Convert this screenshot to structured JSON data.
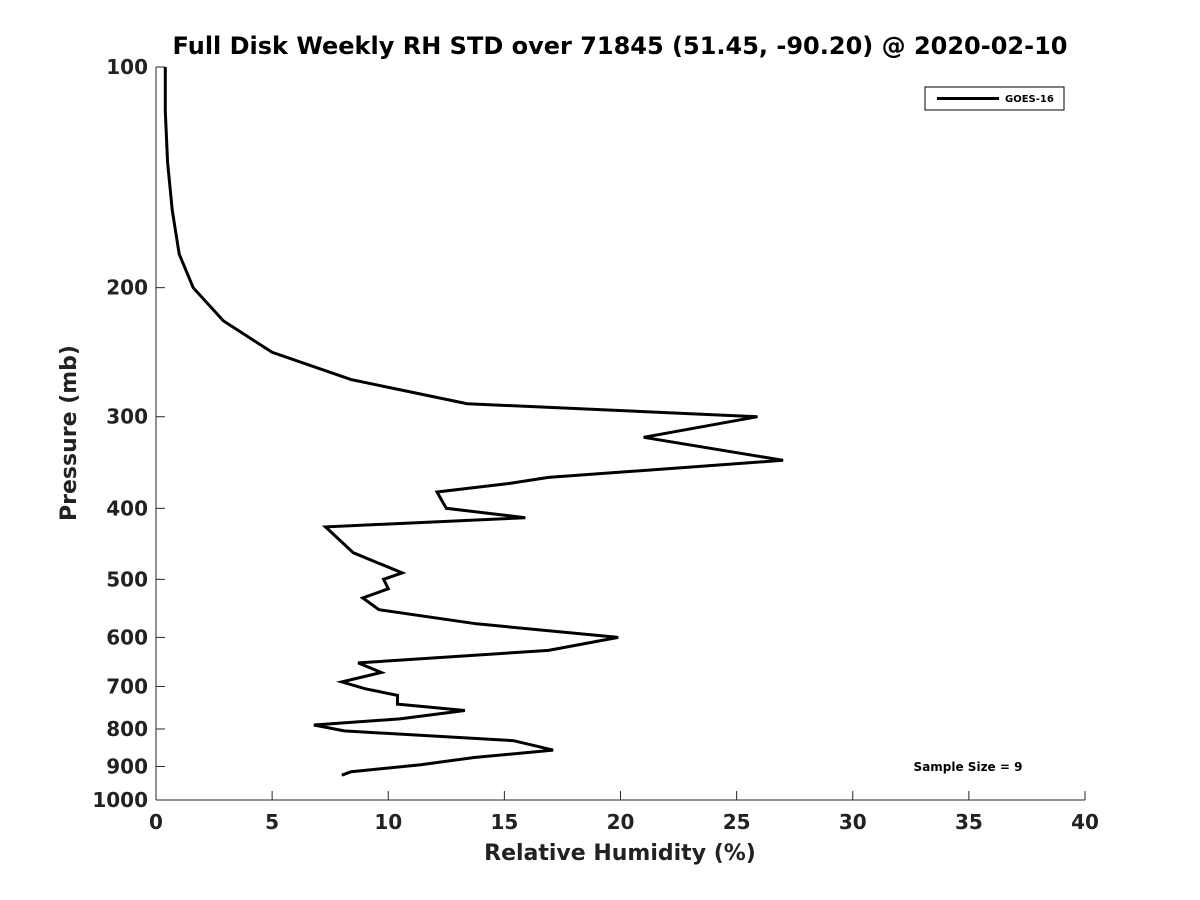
{
  "chart_data": {
    "type": "line",
    "title": "Full Disk Weekly RH STD over 71845 (51.45, -90.20) @ 2020-02-10",
    "xlabel": "Relative Humidity (%)",
    "ylabel": "Pressure (mb)",
    "xlim": [
      0,
      40
    ],
    "ylim": [
      100,
      1000
    ],
    "y_scale": "log",
    "y_reversed": true,
    "x_ticks": [
      0,
      5,
      10,
      15,
      20,
      25,
      30,
      35,
      40
    ],
    "y_ticks": [
      100,
      200,
      300,
      400,
      500,
      600,
      700,
      800,
      900,
      1000
    ],
    "grid": false,
    "legend_position": "top-right",
    "annotation": "Sample Size = 9",
    "series": [
      {
        "name": "GOES-16",
        "color": "#000000",
        "x": [
          0.4,
          0.4,
          0.5,
          0.7,
          1.0,
          1.6,
          2.9,
          5.0,
          8.4,
          13.4,
          25.9,
          21.0,
          27.0,
          16.9,
          15.2,
          12.1,
          12.5,
          15.9,
          7.3,
          8.5,
          10.6,
          9.8,
          10.0,
          8.9,
          9.6,
          13.8,
          19.9,
          16.9,
          8.7,
          9.7,
          8.0,
          9.0,
          10.4,
          10.4,
          13.3,
          10.5,
          6.8,
          8.1,
          15.4,
          17.1,
          13.7,
          11.4,
          8.4,
          8.0
        ],
        "y": [
          100,
          115,
          135,
          157,
          180,
          200,
          222,
          245,
          267,
          288,
          300,
          320,
          344,
          363,
          370,
          380,
          400,
          412,
          424,
          460,
          490,
          500,
          515,
          530,
          550,
          575,
          600,
          625,
          650,
          670,
          690,
          705,
          720,
          740,
          755,
          775,
          790,
          805,
          830,
          855,
          875,
          895,
          915,
          925
        ]
      }
    ]
  }
}
